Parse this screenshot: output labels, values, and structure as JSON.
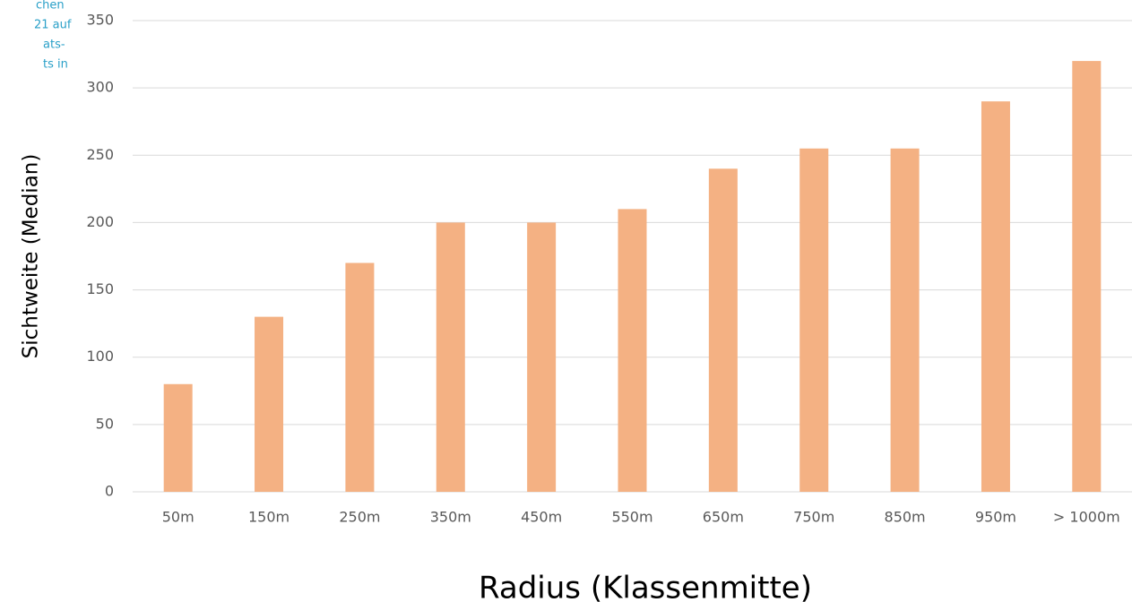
{
  "chart_data": {
    "type": "bar",
    "annotations": [
      "chen",
      "21 auf",
      "ats-",
      "ts in"
    ],
    "categories": [
      "50m",
      "150m",
      "250m",
      "350m",
      "450m",
      "550m",
      "650m",
      "750m",
      "850m",
      "950m",
      "> 1000m"
    ],
    "values": [
      80,
      130,
      170,
      200,
      200,
      210,
      240,
      255,
      255,
      290,
      320
    ],
    "color": "#f4b183",
    "ylim": [
      0,
      350
    ],
    "yticks": [
      0,
      50,
      100,
      150,
      200,
      250,
      300,
      350
    ],
    "grid": true,
    "xlabel": "Radius (Klassenmitte)",
    "ylabel": "Sichtweite (Median)"
  }
}
